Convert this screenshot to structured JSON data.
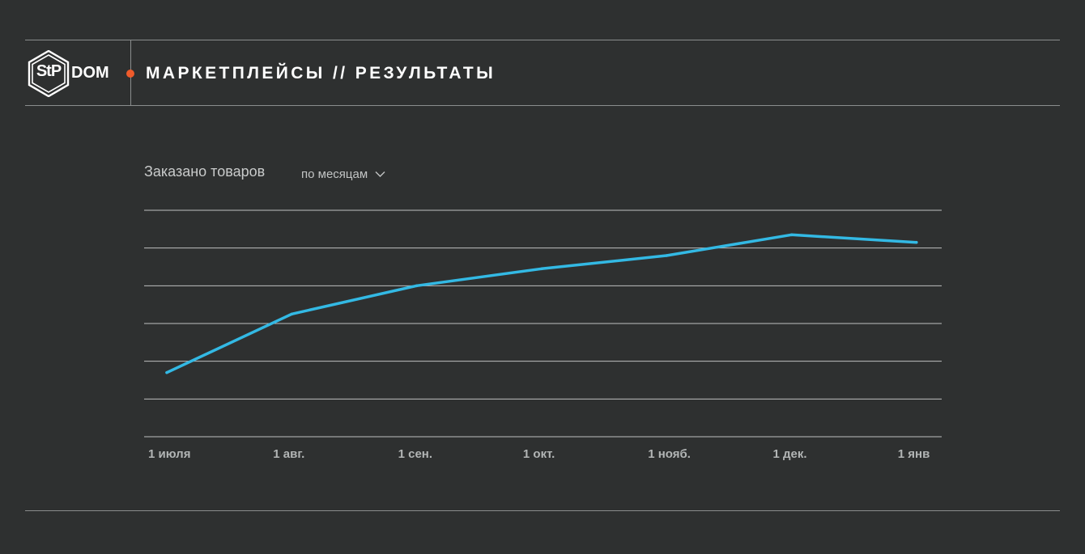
{
  "header": {
    "logo_text": "StP",
    "brand_word": "DOM",
    "title": "МАРКЕТПЛЕЙСЫ // РЕЗУЛЬТАТЫ"
  },
  "colors": {
    "background": "#2e3030",
    "line": "#33b9e4",
    "accent": "#ef5b2b",
    "grid": "#d8d8d8"
  },
  "chart_controls": {
    "period_label": "по месяцам",
    "period_icon": "chevron-down-icon"
  },
  "chart_data": {
    "type": "line",
    "title": "Заказано товаров",
    "xlabel": "",
    "ylabel": "",
    "categories": [
      "1 июля",
      "1 авг.",
      "1 сен.",
      "1 окт.",
      "1 нояб.",
      "1 дек.",
      "1 янв"
    ],
    "series": [
      {
        "values": [
          17,
          32.5,
          40,
          44.5,
          48,
          53.5,
          51.5
        ]
      }
    ],
    "ylim": [
      0,
      60
    ],
    "y_gridlines": 7,
    "y_tick_labels": false,
    "grid": true,
    "legend": "none"
  }
}
